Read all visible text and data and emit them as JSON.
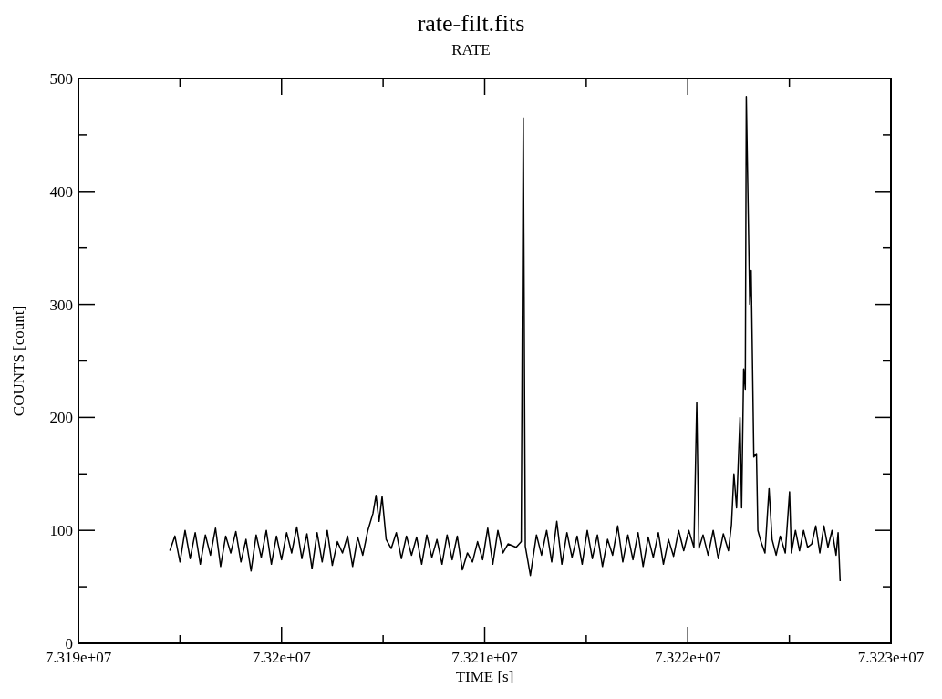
{
  "chart_data": {
    "type": "line",
    "title": "rate-filt.fits",
    "subtitle": "RATE",
    "xlabel": "TIME [s]",
    "ylabel": "COUNTS [count]",
    "xlim": [
      73190000,
      73230000
    ],
    "xticks": [
      {
        "value": 73190000,
        "label": "7.319e+07"
      },
      {
        "value": 73195000,
        "label": null
      },
      {
        "value": 73200000,
        "label": "7.32e+07"
      },
      {
        "value": 73205000,
        "label": null
      },
      {
        "value": 73210000,
        "label": "7.321e+07"
      },
      {
        "value": 73215000,
        "label": null
      },
      {
        "value": 73220000,
        "label": "7.322e+07"
      },
      {
        "value": 73225000,
        "label": null
      },
      {
        "value": 73230000,
        "label": "7.323e+07"
      }
    ],
    "ylim": [
      0,
      500
    ],
    "yticks": [
      0,
      {
        "value": 50,
        "label": null
      },
      100,
      {
        "value": 150,
        "label": null
      },
      200,
      {
        "value": 250,
        "label": null
      },
      300,
      {
        "value": 350,
        "label": null
      },
      400,
      {
        "value": 450,
        "label": null
      },
      500
    ],
    "grid": false,
    "marker": "none",
    "line_style": "solid",
    "series": [
      {
        "color": "#000000",
        "x": [
          73194500,
          73194750,
          73195000,
          73195250,
          73195500,
          73195750,
          73196000,
          73196250,
          73196500,
          73196750,
          73197000,
          73197250,
          73197500,
          73197750,
          73198000,
          73198250,
          73198500,
          73198750,
          73199000,
          73199250,
          73199500,
          73199750,
          73200000,
          73200250,
          73200500,
          73200750,
          73201000,
          73201250,
          73201500,
          73201750,
          73202000,
          73202250,
          73202500,
          73202750,
          73203000,
          73203250,
          73203500,
          73203750,
          73204000,
          73204250,
          73204500,
          73204650,
          73204800,
          73204950,
          73205150,
          73205400,
          73205650,
          73205900,
          73206150,
          73206400,
          73206650,
          73206900,
          73207150,
          73207400,
          73207650,
          73207900,
          73208150,
          73208400,
          73208650,
          73208900,
          73209150,
          73209400,
          73209650,
          73209900,
          73210150,
          73210400,
          73210650,
          73210900,
          73211150,
          73211550,
          73211800,
          73211900,
          73212000,
          73212250,
          73212550,
          73212800,
          73213050,
          73213300,
          73213550,
          73213800,
          73214050,
          73214300,
          73214550,
          73214800,
          73215050,
          73215300,
          73215550,
          73215800,
          73216050,
          73216300,
          73216550,
          73216800,
          73217050,
          73217300,
          73217550,
          73217800,
          73218050,
          73218300,
          73218550,
          73218800,
          73219050,
          73219300,
          73219550,
          73219800,
          73220050,
          73220300,
          73220440,
          73220550,
          73220750,
          73221000,
          73221250,
          73221500,
          73221750,
          73222000,
          73222150,
          73222270,
          73222400,
          73222570,
          73222650,
          73222750,
          73222830,
          73222880,
          73223050,
          73223120,
          73223250,
          73223380,
          73223450,
          73223600,
          73223800,
          73224000,
          73224150,
          73224350,
          73224550,
          73224800,
          73225010,
          73225100,
          73225300,
          73225500,
          73225700,
          73225900,
          73226100,
          73226300,
          73226500,
          73226700,
          73226900,
          73227100,
          73227300,
          73227400,
          73227500
        ],
        "values": [
          82,
          95,
          72,
          100,
          75,
          98,
          70,
          96,
          78,
          102,
          68,
          95,
          80,
          99,
          72,
          92,
          64,
          96,
          76,
          100,
          70,
          95,
          74,
          98,
          80,
          103,
          75,
          97,
          66,
          98,
          72,
          100,
          69,
          90,
          80,
          95,
          68,
          94,
          78,
          100,
          115,
          131,
          108,
          130,
          92,
          84,
          98,
          75,
          95,
          78,
          94,
          70,
          96,
          76,
          92,
          70,
          96,
          74,
          95,
          65,
          80,
          72,
          90,
          74,
          102,
          70,
          100,
          80,
          88,
          85,
          90,
          465,
          86,
          60,
          96,
          78,
          100,
          72,
          108,
          70,
          98,
          76,
          95,
          70,
          100,
          75,
          96,
          68,
          92,
          78,
          104,
          72,
          96,
          74,
          98,
          68,
          94,
          76,
          98,
          70,
          92,
          77,
          100,
          82,
          100,
          85,
          213,
          84,
          96,
          78,
          100,
          75,
          97,
          82,
          105,
          150,
          120,
          200,
          120,
          243,
          225,
          484,
          300,
          330,
          165,
          168,
          100,
          90,
          80,
          137,
          92,
          78,
          95,
          80,
          134,
          80,
          100,
          82,
          100,
          85,
          88,
          104,
          80,
          104,
          85,
          100,
          78,
          98,
          55
        ]
      }
    ]
  }
}
